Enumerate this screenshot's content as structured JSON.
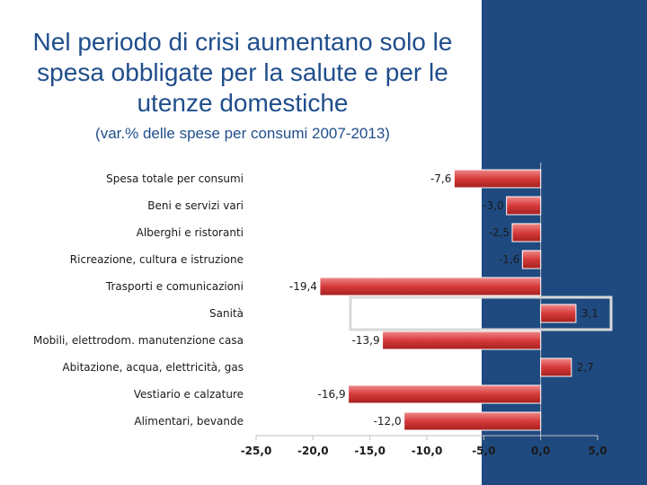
{
  "slide": {
    "title": "Nel periodo di crisi aumentano solo le spesa obbligate per la salute e per le utenze domestiche",
    "subtitle": "(var.% delle spese per consumi 2007-2013)"
  },
  "colors": {
    "band": "#1f4a80",
    "bar": "#c72b2b",
    "bar_light": "#e86a6a",
    "title": "#1f4e8c"
  },
  "chart_data": {
    "type": "bar",
    "orientation": "horizontal",
    "categories": [
      "Spesa totale per consumi",
      "Beni e servizi vari",
      "Alberghi e ristoranti",
      "Ricreazione, cultura e istruzione",
      "Trasporti e comunicazioni",
      "Sanità",
      "Mobili, elettrodom. manutenzione casa",
      "Abitazione, acqua, elettricità, gas",
      "Vestiario e calzature",
      "Alimentari, bevande"
    ],
    "values": [
      -7.6,
      -3.0,
      -2.5,
      -1.6,
      -19.4,
      3.1,
      -13.9,
      2.7,
      -16.9,
      -12.0
    ],
    "value_labels": [
      "-7,6",
      "-3,0",
      "-2,5",
      "-1,6",
      "-19,4",
      "3,1",
      "-13,9",
      "2,7",
      "-16,9",
      "-12,0"
    ],
    "xlim": [
      -25,
      5
    ],
    "xticks": [
      -25,
      -20,
      -15,
      -10,
      -5,
      0,
      5
    ],
    "xtick_labels": [
      "-25,0",
      "-20,0",
      "-15,0",
      "-10,0",
      "-5,0",
      "0,0",
      "5,0"
    ],
    "highlighted_category": "Sanità",
    "grid": false,
    "legend": "none"
  }
}
